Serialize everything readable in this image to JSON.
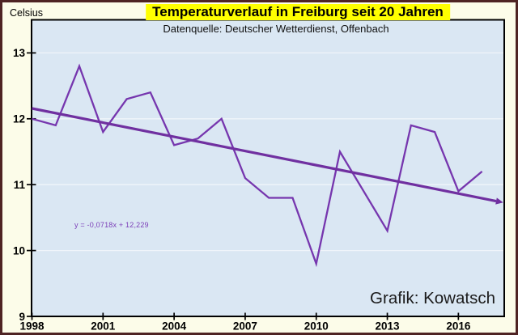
{
  "annotations": {
    "trend_equation": "y = -0,0718x + 12,229",
    "credit": "Grafik: Kowatsch"
  },
  "chart_data": {
    "type": "line",
    "title": "Temperaturverlauf in Freiburg seit 20 Jahren",
    "subtitle": "Datenquelle: Deutscher Wetterdienst, Offenbach",
    "ylabel": "Celsius",
    "xlabel": "",
    "x": [
      1998,
      1999,
      2000,
      2001,
      2002,
      2003,
      2004,
      2005,
      2006,
      2007,
      2008,
      2009,
      2010,
      2011,
      2012,
      2013,
      2014,
      2015,
      2016,
      2017
    ],
    "values": [
      12.0,
      11.9,
      12.8,
      11.8,
      12.3,
      12.4,
      11.6,
      11.7,
      12.0,
      11.1,
      10.8,
      10.8,
      9.8,
      11.5,
      10.9,
      10.3,
      11.9,
      11.8,
      10.9,
      11.2
    ],
    "trend": {
      "equation_label": "y = -0,0718x + 12,229",
      "slope_per_year": -0.0718,
      "intercept": 12.229,
      "x_index_of_first_year": 1,
      "arrow": true
    },
    "x_ticks": [
      1998,
      2001,
      2004,
      2007,
      2010,
      2013,
      2016
    ],
    "y_ticks": [
      9,
      10,
      11,
      12,
      13
    ],
    "xlim": [
      1998,
      2017.9
    ],
    "ylim": [
      9,
      13.5
    ],
    "grid": "faint horizontal gridlines at integer degrees",
    "legend": "none",
    "colors": {
      "line": "#7636AE",
      "trend": "#7030A0",
      "plot_bg": "#DAE7F3",
      "plot_border": "#000000",
      "gridline": "rgba(255,255,255,0.6)",
      "outer_bg": "#FCFCE9",
      "frame_border": "#4E2323",
      "title_highlight": "#FFFF00",
      "tick_text": "#000000",
      "equation_text": "#7B3EB8",
      "credit_text": "#1b1b1b"
    }
  }
}
